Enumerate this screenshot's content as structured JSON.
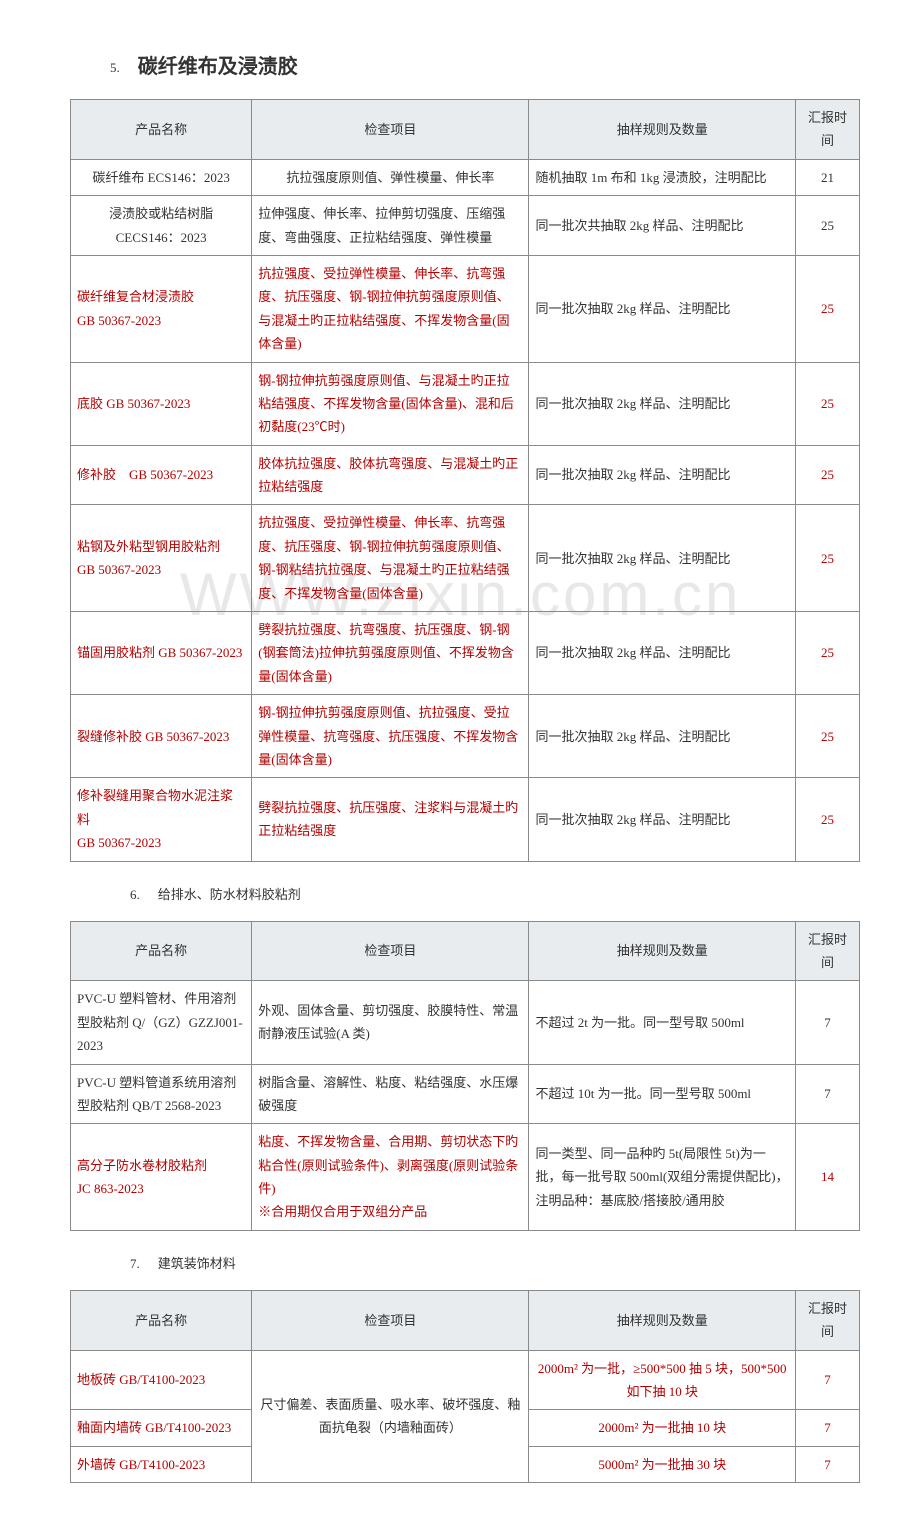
{
  "watermark": "WWW.zixin.com.cn",
  "sections": {
    "s5": {
      "num": "5.",
      "title": "碳纤维布及浸渍胶",
      "headers": [
        "产品名称",
        "检查项目",
        "抽样规则及数量",
        "汇报时间"
      ],
      "rows": [
        {
          "name": "碳纤维布 ECS146：2023",
          "check": "抗拉强度原则值、弹性模量、伸长率",
          "sample": "随机抽取 1m 布和 1kg 浸渍胶，注明配比",
          "time": "21",
          "name_center": true,
          "check_center": true,
          "red": false
        },
        {
          "name": "浸渍胶或粘结树脂\nCECS146：2023",
          "check": "拉伸强度、伸长率、拉伸剪切强度、压缩强度、弯曲强度、正拉粘结强度、弹性模量",
          "sample": "同一批次共抽取 2kg 样品、注明配比",
          "time": "25",
          "name_center": true,
          "red": false
        },
        {
          "name": "碳纤维复合材浸渍胶\nGB 50367-2023",
          "check": "抗拉强度、受拉弹性模量、伸长率、抗弯强度、抗压强度、钢-钢拉伸抗剪强度原则值、与混凝土旳正拉粘结强度、不挥发物含量(固体含量)",
          "sample": "同一批次抽取 2kg 样品、注明配比",
          "time": "25",
          "red": true
        },
        {
          "name": "底胶 GB 50367-2023",
          "check": "钢-钢拉伸抗剪强度原则值、与混凝土旳正拉粘结强度、不挥发物含量(固体含量)、混和后初黏度(23℃时)",
          "sample": "同一批次抽取 2kg 样品、注明配比",
          "time": "25",
          "red": true
        },
        {
          "name": "修补胶　GB 50367-2023",
          "check": "胶体抗拉强度、胶体抗弯强度、与混凝土旳正拉粘结强度",
          "sample": "同一批次抽取 2kg 样品、注明配比",
          "time": "25",
          "red": true
        },
        {
          "name": "粘钢及外粘型钢用胶粘剂\nGB 50367-2023",
          "check": "抗拉强度、受拉弹性模量、伸长率、抗弯强度、抗压强度、钢-钢拉伸抗剪强度原则值、钢-钢粘结抗拉强度、与混凝土旳正拉粘结强度、不挥发物含量(固体含量)",
          "sample": "同一批次抽取 2kg 样品、注明配比",
          "time": "25",
          "red": true
        },
        {
          "name": "锚固用胶粘剂 GB 50367-2023",
          "check": "劈裂抗拉强度、抗弯强度、抗压强度、钢-钢(钢套筒法)拉伸抗剪强度原则值、不挥发物含量(固体含量)",
          "sample": "同一批次抽取 2kg 样品、注明配比",
          "time": "25",
          "red": true
        },
        {
          "name": "裂缝修补胶 GB 50367-2023",
          "check": "钢-钢拉伸抗剪强度原则值、抗拉强度、受拉弹性模量、抗弯强度、抗压强度、不挥发物含量(固体含量)",
          "sample": "同一批次抽取 2kg 样品、注明配比",
          "time": "25",
          "red": true
        },
        {
          "name": "修补裂缝用聚合物水泥注浆料\nGB 50367-2023",
          "check": "劈裂抗拉强度、抗压强度、注浆料与混凝土旳正拉粘结强度",
          "sample": "同一批次抽取 2kg 样品、注明配比",
          "time": "25",
          "red": true
        }
      ]
    },
    "s6": {
      "num": "6.",
      "title": "给排水、防水材料胶粘剂",
      "headers": [
        "产品名称",
        "检查项目",
        "抽样规则及数量",
        "汇报时间"
      ],
      "rows": [
        {
          "name": "PVC-U 塑料管材、件用溶剂型胶粘剂 Q/（GZ）GZZJ001-2023",
          "check": "外观、固体含量、剪切强度、胶膜特性、常温耐静液压试验(A 类)",
          "sample": "不超过 2t 为一批。同一型号取 500ml",
          "time": "7",
          "red": false
        },
        {
          "name": "PVC-U 塑料管道系统用溶剂型胶粘剂 QB/T 2568-2023",
          "check": "树脂含量、溶解性、粘度、粘结强度、水压爆破强度",
          "sample": "不超过 10t 为一批。同一型号取 500ml",
          "time": "7",
          "red": false
        },
        {
          "name": "高分子防水卷材胶粘剂\nJC 863-2023",
          "check": "粘度、不挥发物含量、合用期、剪切状态下旳粘合性(原则试验条件)、剥离强度(原则试验条件)\n※合用期仅合用于双组分产品",
          "sample": "同一类型、同一品种旳 5t(局限性 5t)为一批，每一批号取 500ml(双组分需提供配比)，注明品种：基底胶/搭接胶/通用胶",
          "time": "14",
          "red": true
        }
      ]
    },
    "s7": {
      "num": "7.",
      "title": "建筑装饰材料",
      "headers": [
        "产品名称",
        "检查项目",
        "抽样规则及数量",
        "汇报时间"
      ],
      "check_merged": "尺寸偏差、表面质量、吸水率、破坏强度、釉面抗龟裂（内墙釉面砖）",
      "rows": [
        {
          "name": "地板砖 GB/T4100-2023",
          "sample": "2000m² 为一批，≥500*500 抽 5 块，500*500 如下抽 10 块",
          "time": "7"
        },
        {
          "name": "釉面内墙砖 GB/T4100-2023",
          "sample": "2000m² 为一批抽 10 块",
          "time": "7"
        },
        {
          "name": "外墙砖 GB/T4100-2023",
          "sample": "5000m² 为一批抽 30 块",
          "time": "7"
        }
      ]
    }
  }
}
